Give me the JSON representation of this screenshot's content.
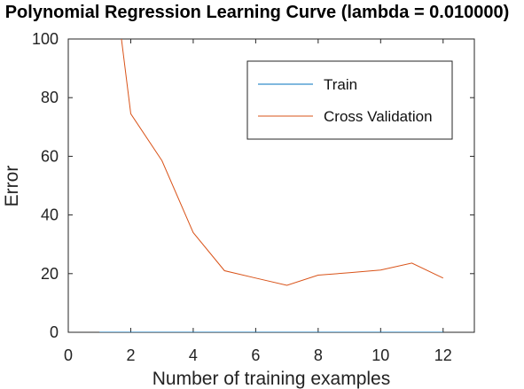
{
  "chart_data": {
    "type": "line",
    "title": "Polynomial Regression Learning Curve (lambda = 0.010000)",
    "xlabel": "Number of training examples",
    "ylabel": "Error",
    "xlim": [
      0,
      13
    ],
    "ylim": [
      0,
      100
    ],
    "xticks": [
      0,
      2,
      4,
      6,
      8,
      10,
      12
    ],
    "yticks": [
      0,
      20,
      40,
      60,
      80,
      100
    ],
    "grid": false,
    "legend_position": "top-right",
    "series": [
      {
        "name": "Train",
        "color": "#0072BD",
        "x": [
          1,
          2,
          3,
          4,
          5,
          6,
          7,
          8,
          9,
          10,
          11,
          12
        ],
        "y": [
          0,
          0,
          0,
          0,
          0,
          0,
          0,
          0,
          0,
          0,
          0,
          0
        ]
      },
      {
        "name": "Cross Validation",
        "color": "#D95319",
        "x": [
          1,
          2,
          3,
          4,
          5,
          6,
          7,
          8,
          9,
          10,
          11,
          12
        ],
        "y": [
          160,
          74.5,
          58.5,
          34,
          21,
          18.5,
          16,
          19.5,
          20.3,
          21.2,
          23.6,
          18.5
        ]
      }
    ]
  }
}
